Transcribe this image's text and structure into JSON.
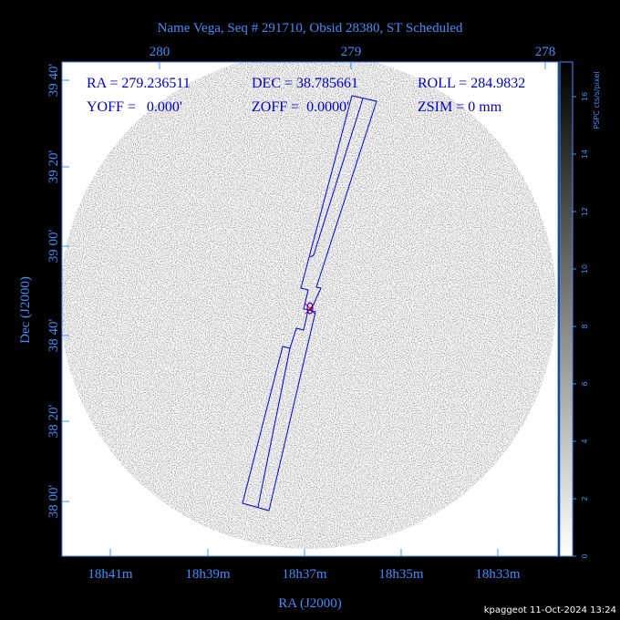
{
  "title": "Name Vega, Seq # 291710, Obsid 28380, ST Scheduled",
  "header": {
    "ra": "RA = 279.236511",
    "dec": "DEC = 38.785661",
    "roll": "ROLL = 284.9832",
    "yoff": "YOFF =   0.000'",
    "zoff": "ZOFF =  0.0000'",
    "zsim": "ZSIM = 0 mm"
  },
  "x_axis_label": "RA (J2000)",
  "y_axis_label": "Dec (J2000)",
  "bottom_ticks": [
    "18h41m",
    "18h39m",
    "18h37m",
    "18h35m",
    "18h33m"
  ],
  "top_ticks": [
    280,
    279,
    278
  ],
  "left_ticks": [
    "39 40'",
    "39 20'",
    "39 00'",
    "38 40'",
    "38 20'",
    "38 00'"
  ],
  "colorbar": {
    "label": "PSPC cts/s/pixel",
    "ticks": [
      0,
      2,
      4,
      6,
      8,
      10,
      12,
      14,
      16
    ]
  },
  "footer": "kpaggeot 11-Oct-2024 13:24"
}
